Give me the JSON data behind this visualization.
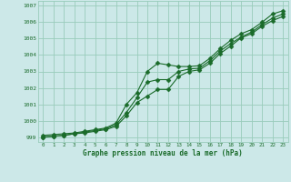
{
  "xlabel": "Graphe pression niveau de la mer (hPa)",
  "bg_color": "#cce8e8",
  "grid_color": "#99ccbb",
  "line_color": "#1a6b2a",
  "xlim": [
    -0.5,
    23.5
  ],
  "ylim": [
    998.7,
    1007.3
  ],
  "yticks": [
    999,
    1000,
    1001,
    1002,
    1003,
    1004,
    1005,
    1006,
    1007
  ],
  "xticks": [
    0,
    1,
    2,
    3,
    4,
    5,
    6,
    7,
    8,
    9,
    10,
    11,
    12,
    13,
    14,
    15,
    16,
    17,
    18,
    19,
    20,
    21,
    22,
    23
  ],
  "series1": [
    999.1,
    999.15,
    999.2,
    999.25,
    999.35,
    999.45,
    999.55,
    999.85,
    1001.0,
    1001.7,
    1003.0,
    1003.5,
    1003.4,
    1003.3,
    1003.3,
    1003.35,
    1003.8,
    1004.4,
    1004.9,
    1005.3,
    1005.55,
    1006.0,
    1006.5,
    1006.7
  ],
  "series2": [
    999.0,
    999.05,
    999.1,
    999.2,
    999.3,
    999.4,
    999.5,
    999.75,
    1000.5,
    1001.4,
    1002.35,
    1002.5,
    1002.5,
    1003.0,
    1003.15,
    1003.2,
    1003.65,
    1004.25,
    1004.7,
    1005.1,
    1005.4,
    1005.85,
    1006.25,
    1006.5
  ],
  "series3": [
    999.0,
    999.05,
    999.1,
    999.2,
    999.25,
    999.35,
    999.45,
    999.65,
    1000.3,
    1001.1,
    1001.5,
    1001.9,
    1001.9,
    1002.7,
    1003.0,
    1003.1,
    1003.5,
    1004.1,
    1004.55,
    1005.05,
    1005.3,
    1005.75,
    1006.1,
    1006.35
  ]
}
